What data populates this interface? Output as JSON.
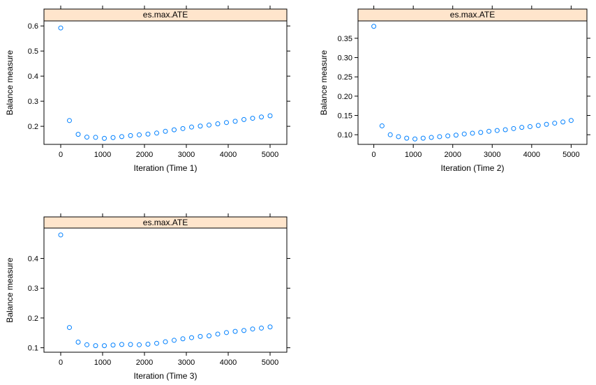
{
  "colors": {
    "strip_fill": "#ffe5cc",
    "point_stroke": "#0080ff",
    "frame": "#000000"
  },
  "chart_data": [
    {
      "type": "scatter",
      "title": "es.max.ATE",
      "xlabel": "Iteration (Time 1)",
      "ylabel": "Balance measure",
      "xlim": [
        -400,
        5400
      ],
      "ylim": [
        0.128,
        0.62
      ],
      "xticks": [
        0,
        1000,
        2000,
        3000,
        4000,
        5000
      ],
      "yticks": [
        0.2,
        0.3,
        0.4,
        0.5,
        0.6
      ],
      "ytick_labels": [
        "0.2",
        "0.3",
        "0.4",
        "0.5",
        "0.6"
      ],
      "grid": false,
      "x": [
        0,
        208,
        417,
        625,
        833,
        1042,
        1250,
        1458,
        1667,
        1875,
        2083,
        2292,
        2500,
        2708,
        2917,
        3125,
        3333,
        3542,
        3750,
        3958,
        4167,
        4375,
        4583,
        4792,
        5000
      ],
      "y": [
        0.592,
        0.223,
        0.168,
        0.157,
        0.156,
        0.152,
        0.155,
        0.159,
        0.163,
        0.166,
        0.169,
        0.173,
        0.18,
        0.186,
        0.191,
        0.197,
        0.201,
        0.205,
        0.21,
        0.215,
        0.22,
        0.227,
        0.232,
        0.237,
        0.242
      ]
    },
    {
      "type": "scatter",
      "title": "es.max.ATE",
      "xlabel": "Iteration (Time 2)",
      "ylabel": "Balance measure",
      "xlim": [
        -400,
        5400
      ],
      "ylim": [
        0.075,
        0.395
      ],
      "xticks": [
        0,
        1000,
        2000,
        3000,
        4000,
        5000
      ],
      "yticks": [
        0.1,
        0.15,
        0.2,
        0.25,
        0.3,
        0.35
      ],
      "ytick_labels": [
        "0.10",
        "0.15",
        "0.20",
        "0.25",
        "0.30",
        "0.35"
      ],
      "grid": false,
      "x": [
        0,
        208,
        417,
        625,
        833,
        1042,
        1250,
        1458,
        1667,
        1875,
        2083,
        2292,
        2500,
        2708,
        2917,
        3125,
        3333,
        3542,
        3750,
        3958,
        4167,
        4375,
        4583,
        4792,
        5000
      ],
      "y": [
        0.381,
        0.123,
        0.1,
        0.095,
        0.091,
        0.089,
        0.091,
        0.093,
        0.095,
        0.097,
        0.099,
        0.102,
        0.104,
        0.106,
        0.109,
        0.111,
        0.113,
        0.116,
        0.119,
        0.121,
        0.124,
        0.127,
        0.13,
        0.133,
        0.137
      ]
    },
    {
      "type": "scatter",
      "title": "es.max.ATE",
      "xlabel": "Iteration (Time 3)",
      "ylabel": "Balance measure",
      "xlim": [
        -400,
        5400
      ],
      "ylim": [
        0.085,
        0.502
      ],
      "xticks": [
        0,
        1000,
        2000,
        3000,
        4000,
        5000
      ],
      "yticks": [
        0.1,
        0.2,
        0.3,
        0.4
      ],
      "ytick_labels": [
        "0.1",
        "0.2",
        "0.3",
        "0.4"
      ],
      "grid": false,
      "x": [
        0,
        208,
        417,
        625,
        833,
        1042,
        1250,
        1458,
        1667,
        1875,
        2083,
        2292,
        2500,
        2708,
        2917,
        3125,
        3333,
        3542,
        3750,
        3958,
        4167,
        4375,
        4583,
        4792,
        5000
      ],
      "y": [
        0.479,
        0.168,
        0.119,
        0.11,
        0.107,
        0.107,
        0.109,
        0.111,
        0.111,
        0.11,
        0.112,
        0.115,
        0.12,
        0.125,
        0.13,
        0.134,
        0.138,
        0.14,
        0.146,
        0.151,
        0.155,
        0.158,
        0.163,
        0.166,
        0.17
      ]
    }
  ]
}
